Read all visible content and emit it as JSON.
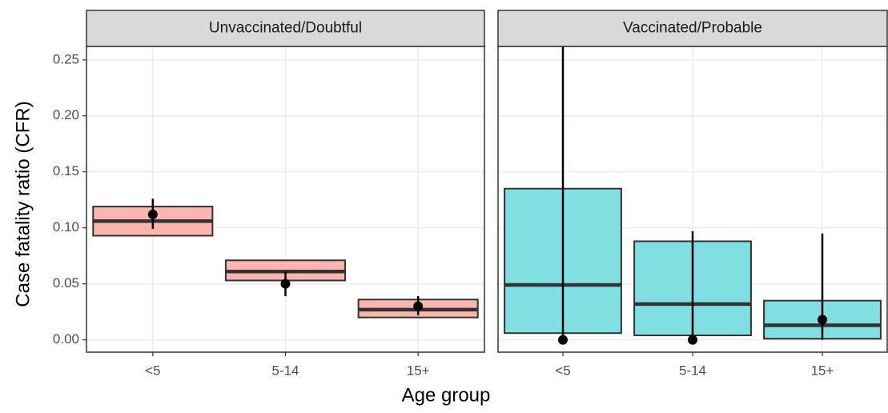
{
  "chart_data": {
    "type": "crossbar",
    "x_label": "Age group",
    "y_label": "Case fatality ratio (CFR)",
    "ylim": [
      -0.011,
      0.262
    ],
    "yticks": [
      {
        "value": 0,
        "label": "0.00"
      },
      {
        "value": 0.05,
        "label": "0.05"
      },
      {
        "value": 0.1,
        "label": "0.10"
      },
      {
        "value": 0.15,
        "label": "0.15"
      },
      {
        "value": 0.2,
        "label": "0.20"
      },
      {
        "value": 0.25,
        "label": "0.25"
      }
    ],
    "grid": true,
    "panels": [
      {
        "title": "Unvaccinated/Doubtful",
        "color": "#fbb4ae",
        "categories": [
          "<5",
          "5-14",
          "15+"
        ],
        "lower": [
          0.093,
          0.053,
          0.02
        ],
        "middle": [
          0.106,
          0.061,
          0.027
        ],
        "upper": [
          0.119,
          0.071,
          0.036
        ],
        "point": [
          0.112,
          0.05,
          0.03
        ],
        "point_lower": [
          0.099,
          0.039,
          0.022
        ],
        "point_upper": [
          0.126,
          0.061,
          0.039
        ]
      },
      {
        "title": "Vaccinated/Probable",
        "color": "#7fdfe1",
        "categories": [
          "<5",
          "5-14",
          "15+"
        ],
        "lower": [
          0.006,
          0.004,
          0.001
        ],
        "middle": [
          0.049,
          0.032,
          0.013
        ],
        "upper": [
          0.135,
          0.088,
          0.035
        ],
        "point": [
          0.0,
          0.0,
          0.018
        ],
        "point_lower": [
          0.0,
          0.0,
          0.0
        ],
        "point_upper": [
          0.262,
          0.097,
          0.095
        ]
      }
    ]
  }
}
